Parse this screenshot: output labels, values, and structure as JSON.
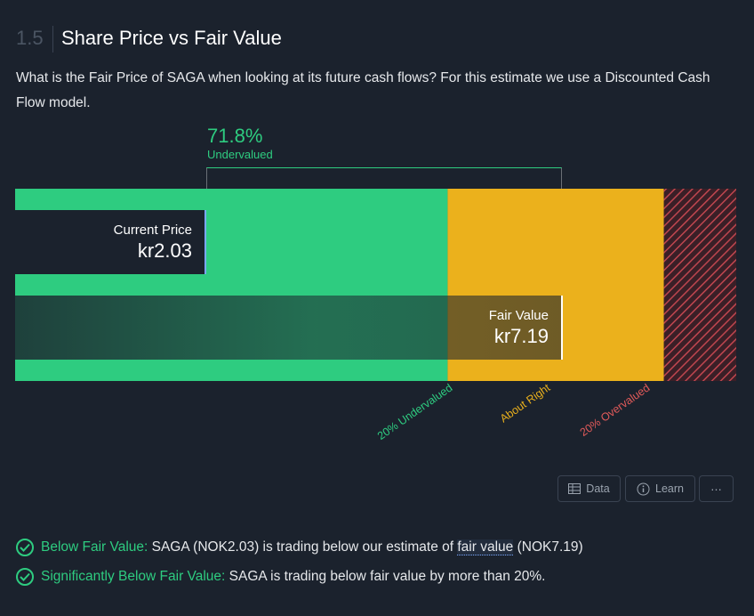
{
  "section": {
    "number": "1.5",
    "title": "Share Price vs Fair Value",
    "description": "What is the Fair Price of SAGA when looking at its future cash flows? For this estimate we use a Discounted Cash Flow model."
  },
  "chart_data": {
    "type": "bar",
    "title": "Share Price vs Fair Value",
    "currency_prefix": "kr",
    "current_price": {
      "label": "Current Price",
      "value": 2.03,
      "display": "kr2.03"
    },
    "fair_value": {
      "label": "Fair Value",
      "value": 7.19,
      "display": "kr7.19"
    },
    "difference": {
      "percent_display": "71.8%",
      "label": "Undervalued",
      "percent": 71.8
    },
    "zones": [
      {
        "name": "undervalued",
        "label": "20% Undervalued",
        "color": "#2ecc80",
        "from": 0,
        "to": 5.752
      },
      {
        "name": "about-right",
        "label": "About Right",
        "color": "#ebb11c",
        "from": 5.752,
        "to": 8.628
      },
      {
        "name": "overvalued",
        "label": "20% Overvalued",
        "color": "#e05a5a",
        "from": 8.628,
        "to": 9.59
      }
    ],
    "xlim": [
      0,
      9.59
    ]
  },
  "buttons": {
    "data": "Data",
    "learn": "Learn",
    "more": "⋯"
  },
  "checks": [
    {
      "label": "Below Fair Value:",
      "text_before": " SAGA (NOK2.03) is trading below our estimate of ",
      "link": "fair value",
      "text_after": " (NOK7.19)"
    },
    {
      "label": "Significantly Below Fair Value:",
      "text": " SAGA is trading below fair value by more than 20%."
    }
  ],
  "colors": {
    "background": "#1b222d",
    "green": "#2ecc80",
    "yellow": "#ebb11c",
    "red": "#e05a5a"
  }
}
